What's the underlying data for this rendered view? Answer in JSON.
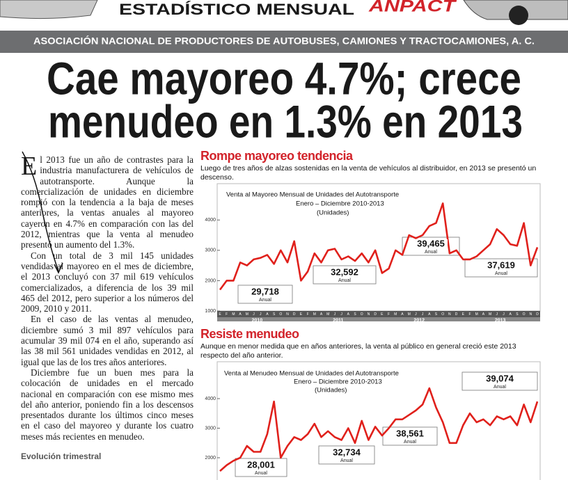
{
  "header": {
    "title": "ESTADÍSTICO MENSUAL",
    "logo": "ANPACT"
  },
  "banner": "ASOCIACIÓN NACIONAL DE PRODUCTORES DE AUTOBUSES, CAMIONES Y TRACTOCAMIONES, A. C.",
  "headline": [
    "Cae mayoreo 4.7%; crece",
    "menudeo en 1.3% en 2013"
  ],
  "article": {
    "dropcap": "E",
    "paragraphs": [
      "l 2013 fue un año de contrastes para la industria manufacturera de vehículos de autotransporte. Aunque la comercialización de unidades en diciembre rompió con la tendencia a la baja de meses anteriores, la ventas anuales al mayoreo cayeron en 4.7% en comparación con las del 2012, mientras que la venta al menudeo presentó un aumento del 1.3%.",
      "Con un total de 3 mil 145 unidades vendidas al mayoreo en el mes de diciembre, el 2013 concluyó con 37 mil 619 vehículos comercializados, a diferencia de los 39 mil 465 del 2012, pero superior a los números del 2009, 2010 y 2011.",
      "En el caso de las ventas al menudeo, diciembre sumó 3 mil 897 vehículos para acumular 39 mil 074 en el año, superando así las 38 mil 561 unidades vendidas en 2012, al igual que las de los tres años anteriores.",
      "Diciembre fue un buen mes para la colocación de unidades en el mercado nacional en comparación con ese mismo mes del año anterior, poniendo fin a los descensos presentados durante los últimos cinco meses en el caso del mayoreo y durante los cuatro meses más recientes en menudeo."
    ],
    "subhead": "Evolución trimestral"
  },
  "chart_data": [
    {
      "type": "line",
      "title": "Rompe mayoreo tendencia",
      "subtitle": "Luego de tres años de alzas sostenidas en la venta de vehículos al distribuidor, en 2013 se presentó un descenso.",
      "inner_title": [
        "Venta al Mayoreo Mensual de Unidades del Autotransporte",
        "Enero – Diciembre 2010-2013",
        "(Unidades)"
      ],
      "categories": [
        "E",
        "F",
        "M",
        "A",
        "M",
        "J",
        "J",
        "A",
        "S",
        "O",
        "N",
        "D",
        "E",
        "F",
        "M",
        "A",
        "M",
        "J",
        "J",
        "A",
        "S",
        "O",
        "N",
        "D",
        "E",
        "F",
        "M",
        "A",
        "M",
        "J",
        "J",
        "A",
        "S",
        "O",
        "N",
        "D",
        "E",
        "F",
        "M",
        "A",
        "M",
        "J",
        "J",
        "A",
        "S",
        "O",
        "N",
        "D"
      ],
      "year_labels": [
        "2010",
        "2011",
        "2012",
        "2013"
      ],
      "color": "#e0201b",
      "values": [
        1700,
        2000,
        2000,
        2600,
        2500,
        2700,
        2750,
        2850,
        2550,
        3000,
        2600,
        3300,
        2000,
        2300,
        2900,
        2600,
        3000,
        3050,
        2700,
        2800,
        2650,
        2900,
        2600,
        3000,
        2250,
        2400,
        3000,
        2850,
        3500,
        3400,
        3500,
        3800,
        3900,
        4550,
        2900,
        3000,
        2700,
        2700,
        2800,
        3000,
        3200,
        3700,
        3500,
        3200,
        3150,
        3900,
        2500,
        3100
      ],
      "ylim": [
        1000,
        4900
      ],
      "yticks": [
        1000,
        2000,
        3000,
        4000
      ],
      "annual_totals": [
        29718,
        32592,
        39465,
        37619
      ],
      "annual_labels": [
        "29,718",
        "32,592",
        "39,465",
        "37,619"
      ],
      "annual_note": "Anual"
    },
    {
      "type": "line",
      "title": "Resiste menudeo",
      "subtitle": "Aunque en menor medida que en años anteriores, la venta al público en general creció este 2013 respecto del año anterior.",
      "inner_title": [
        "Venta al Menudeo Mensual de Unidades del Autotransporte",
        "Enero – Diciembre 2010-2013",
        "(Unidades)"
      ],
      "color": "#e0201b",
      "values": [
        1550,
        1750,
        1900,
        2000,
        2400,
        2200,
        2200,
        2800,
        3900,
        2000,
        2400,
        2700,
        2600,
        2800,
        3150,
        2700,
        2900,
        2700,
        2600,
        3000,
        2500,
        3250,
        2600,
        3050,
        2750,
        3000,
        3300,
        3300,
        3450,
        3600,
        3800,
        4350,
        3700,
        3200,
        2500,
        2500,
        3100,
        3500,
        3200,
        3300,
        3100,
        3400,
        3300,
        3400,
        3100,
        3800,
        3200,
        3900
      ],
      "ylim": [
        1400,
        4800
      ],
      "yticks": [
        2000,
        3000,
        4000
      ],
      "annual_totals": [
        28001,
        32734,
        38561,
        39074
      ],
      "annual_labels": [
        "28,001",
        "32,734",
        "38,561",
        "39,074"
      ],
      "annual_note": "Anual"
    }
  ]
}
